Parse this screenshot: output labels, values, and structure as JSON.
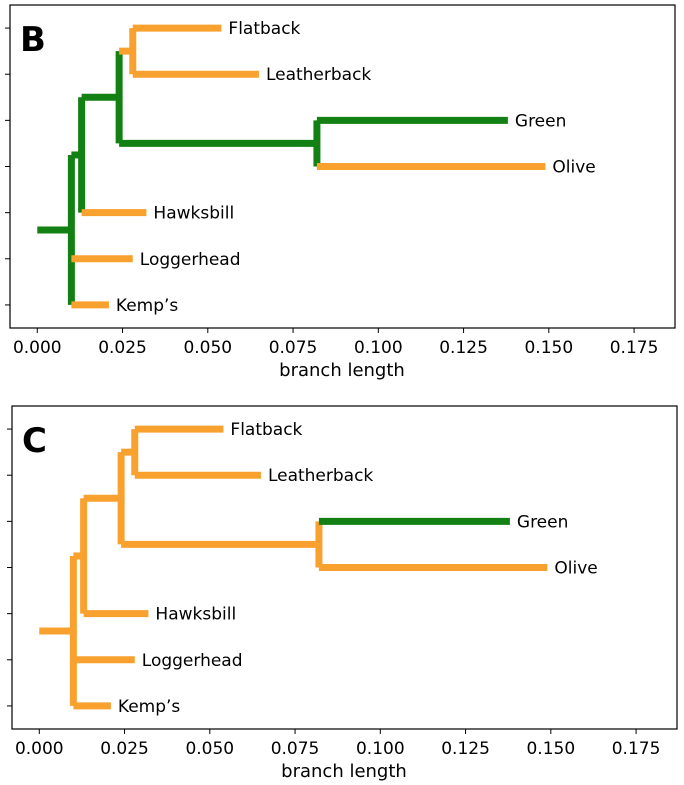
{
  "chart_data": [
    {
      "type": "dendrogram",
      "panel_label": "B",
      "xlabel": "branch length",
      "xlim": [
        -0.008,
        0.187
      ],
      "xticks": [
        "0.000",
        "0.025",
        "0.050",
        "0.075",
        "0.100",
        "0.125",
        "0.150",
        "0.175"
      ],
      "xtick_values": [
        0,
        0.025,
        0.05,
        0.075,
        0.1,
        0.125,
        0.15,
        0.175
      ],
      "leaves": [
        {
          "name": "Flatback",
          "x": 0.054
        },
        {
          "name": "Leatherback",
          "x": 0.065
        },
        {
          "name": "Green",
          "x": 0.138
        },
        {
          "name": "Olive",
          "x": 0.149
        },
        {
          "name": "Hawksbill",
          "x": 0.032
        },
        {
          "name": "Loggerhead",
          "x": 0.028
        },
        {
          "name": "Kemp’s",
          "x": 0.021
        }
      ],
      "nodes": [
        {
          "id": "n_fl",
          "x": 0.028,
          "children": [
            "Flatback",
            "Leatherback"
          ],
          "color": "orange"
        },
        {
          "id": "n_go",
          "x": 0.082,
          "children": [
            "Green",
            "Olive"
          ],
          "color": "green"
        },
        {
          "id": "n_top",
          "x": 0.024,
          "children": [
            "n_fl",
            "n_go"
          ],
          "color": "green"
        },
        {
          "id": "n_h",
          "x": 0.013,
          "children": [
            "n_top",
            "Hawksbill"
          ],
          "color": "green"
        },
        {
          "id": "n_root",
          "x": 0.01,
          "children": [
            "n_h",
            "Loggerhead",
            "Kemp’s"
          ],
          "color": "green"
        }
      ],
      "root_x": 0.0,
      "branch_colors": {
        "Flatback": "orange",
        "Leatherback": "orange",
        "Green": "green",
        "Olive": "orange",
        "Hawksbill": "orange",
        "Loggerhead": "orange",
        "Kemp’s": "orange",
        "n_fl": "orange",
        "n_go": "green",
        "n_top": "green",
        "n_h": "green",
        "root": "green"
      }
    },
    {
      "type": "dendrogram",
      "panel_label": "C",
      "xlabel": "branch length",
      "xlim": [
        -0.008,
        0.187
      ],
      "xticks": [
        "0.000",
        "0.025",
        "0.050",
        "0.075",
        "0.100",
        "0.125",
        "0.150",
        "0.175"
      ],
      "xtick_values": [
        0,
        0.025,
        0.05,
        0.075,
        0.1,
        0.125,
        0.15,
        0.175
      ],
      "leaves": [
        {
          "name": "Flatback",
          "x": 0.054
        },
        {
          "name": "Leatherback",
          "x": 0.065
        },
        {
          "name": "Green",
          "x": 0.138
        },
        {
          "name": "Olive",
          "x": 0.149
        },
        {
          "name": "Hawksbill",
          "x": 0.032
        },
        {
          "name": "Loggerhead",
          "x": 0.028
        },
        {
          "name": "Kemp’s",
          "x": 0.021
        }
      ],
      "nodes": [
        {
          "id": "n_fl",
          "x": 0.028,
          "children": [
            "Flatback",
            "Leatherback"
          ],
          "color": "orange"
        },
        {
          "id": "n_go",
          "x": 0.082,
          "children": [
            "Green",
            "Olive"
          ],
          "color": "orange"
        },
        {
          "id": "n_top",
          "x": 0.024,
          "children": [
            "n_fl",
            "n_go"
          ],
          "color": "orange"
        },
        {
          "id": "n_h",
          "x": 0.013,
          "children": [
            "n_top",
            "Hawksbill"
          ],
          "color": "orange"
        },
        {
          "id": "n_root",
          "x": 0.01,
          "children": [
            "n_h",
            "Loggerhead",
            "Kemp’s"
          ],
          "color": "orange"
        }
      ],
      "root_x": 0.0,
      "branch_colors": {
        "Flatback": "orange",
        "Leatherback": "orange",
        "Green": "green",
        "Olive": "orange",
        "Hawksbill": "orange",
        "Loggerhead": "orange",
        "Kemp’s": "orange",
        "n_fl": "orange",
        "n_go": "orange",
        "n_top": "orange",
        "n_h": "orange",
        "root": "orange"
      }
    }
  ],
  "colors": {
    "orange": "#f9a12e",
    "green": "#128012",
    "frame": "#000000"
  }
}
